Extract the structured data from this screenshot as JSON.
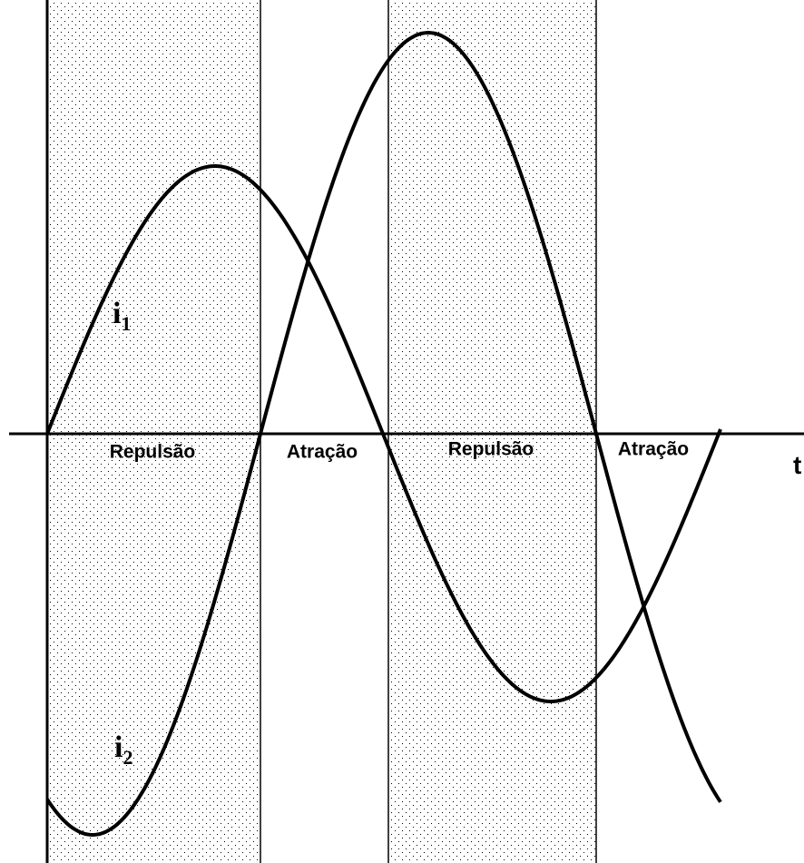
{
  "curves": [
    {
      "symbol": "i",
      "subscript": "1"
    },
    {
      "symbol": "i",
      "subscript": "2"
    }
  ],
  "regions": [
    "Repulsão",
    "Atração",
    "Repulsão",
    "Atração"
  ],
  "axis_label": "t"
}
